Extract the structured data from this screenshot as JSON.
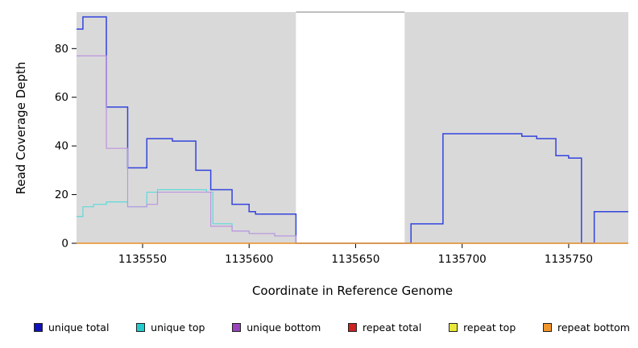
{
  "chart_data": {
    "type": "line",
    "step": true,
    "title": "",
    "xlabel": "Coordinate in Reference Genome",
    "ylabel": "Read Coverage Depth",
    "xlim": [
      1135519,
      1135778
    ],
    "ylim": [
      0,
      95
    ],
    "xticks": [
      1135550,
      1135600,
      1135650,
      1135700,
      1135750
    ],
    "yticks": [
      0,
      20,
      40,
      60,
      80
    ],
    "grid": false,
    "legend_position": "bottom",
    "plot_background": "#d9d9d9",
    "background_bands": [
      {
        "from": 1135519,
        "to": 1135622,
        "color": "#d9d9d9"
      },
      {
        "from": 1135622,
        "to": 1135673,
        "color": "#ffffff",
        "top_border": "#808080"
      },
      {
        "from": 1135673,
        "to": 1135778,
        "color": "#d9d9d9"
      }
    ],
    "series": [
      {
        "name": "unique total",
        "line_color": "#3344dd",
        "swatch_color": "#1111bb",
        "width": 1.5,
        "points": [
          [
            1135519,
            88
          ],
          [
            1135522,
            93
          ],
          [
            1135533,
            56
          ],
          [
            1135543,
            31
          ],
          [
            1135552,
            43
          ],
          [
            1135564,
            42
          ],
          [
            1135575,
            30
          ],
          [
            1135582,
            22
          ],
          [
            1135592,
            16
          ],
          [
            1135600,
            13
          ],
          [
            1135603,
            12
          ],
          [
            1135622,
            0
          ],
          [
            1135676,
            8
          ],
          [
            1135691,
            45
          ],
          [
            1135728,
            44
          ],
          [
            1135735,
            43
          ],
          [
            1135744,
            36
          ],
          [
            1135750,
            35
          ],
          [
            1135756,
            0
          ],
          [
            1135762,
            13
          ],
          [
            1135778,
            13
          ]
        ]
      },
      {
        "name": "unique top",
        "line_color": "#5fd9d9",
        "swatch_color": "#22cccc",
        "width": 1.2,
        "points": [
          [
            1135519,
            11
          ],
          [
            1135522,
            15
          ],
          [
            1135527,
            16
          ],
          [
            1135533,
            17
          ],
          [
            1135543,
            15
          ],
          [
            1135552,
            21
          ],
          [
            1135557,
            22
          ],
          [
            1135575,
            22
          ],
          [
            1135580,
            21
          ],
          [
            1135583,
            8
          ],
          [
            1135592,
            5
          ],
          [
            1135600,
            4
          ],
          [
            1135612,
            3
          ],
          [
            1135622,
            0
          ],
          [
            1135778,
            0
          ]
        ]
      },
      {
        "name": "unique bottom",
        "line_color": "#bf93df",
        "swatch_color": "#9944bb",
        "width": 1.2,
        "points": [
          [
            1135519,
            77
          ],
          [
            1135533,
            39
          ],
          [
            1135543,
            15
          ],
          [
            1135552,
            16
          ],
          [
            1135557,
            21
          ],
          [
            1135575,
            21
          ],
          [
            1135582,
            7
          ],
          [
            1135592,
            5
          ],
          [
            1135600,
            4
          ],
          [
            1135612,
            3
          ],
          [
            1135622,
            0
          ],
          [
            1135778,
            0
          ]
        ]
      },
      {
        "name": "repeat total",
        "line_color": "#cc2222",
        "swatch_color": "#cc2222",
        "width": 1.2,
        "points": [
          [
            1135519,
            0
          ],
          [
            1135778,
            0
          ]
        ]
      },
      {
        "name": "repeat top",
        "line_color": "#e8e83a",
        "swatch_color": "#e8e83a",
        "width": 1.2,
        "points": [
          [
            1135519,
            0
          ],
          [
            1135778,
            0
          ]
        ]
      },
      {
        "name": "repeat bottom",
        "line_color": "#f0952d",
        "swatch_color": "#f0952d",
        "width": 1.2,
        "points": [
          [
            1135519,
            0
          ],
          [
            1135778,
            0
          ]
        ]
      }
    ]
  }
}
